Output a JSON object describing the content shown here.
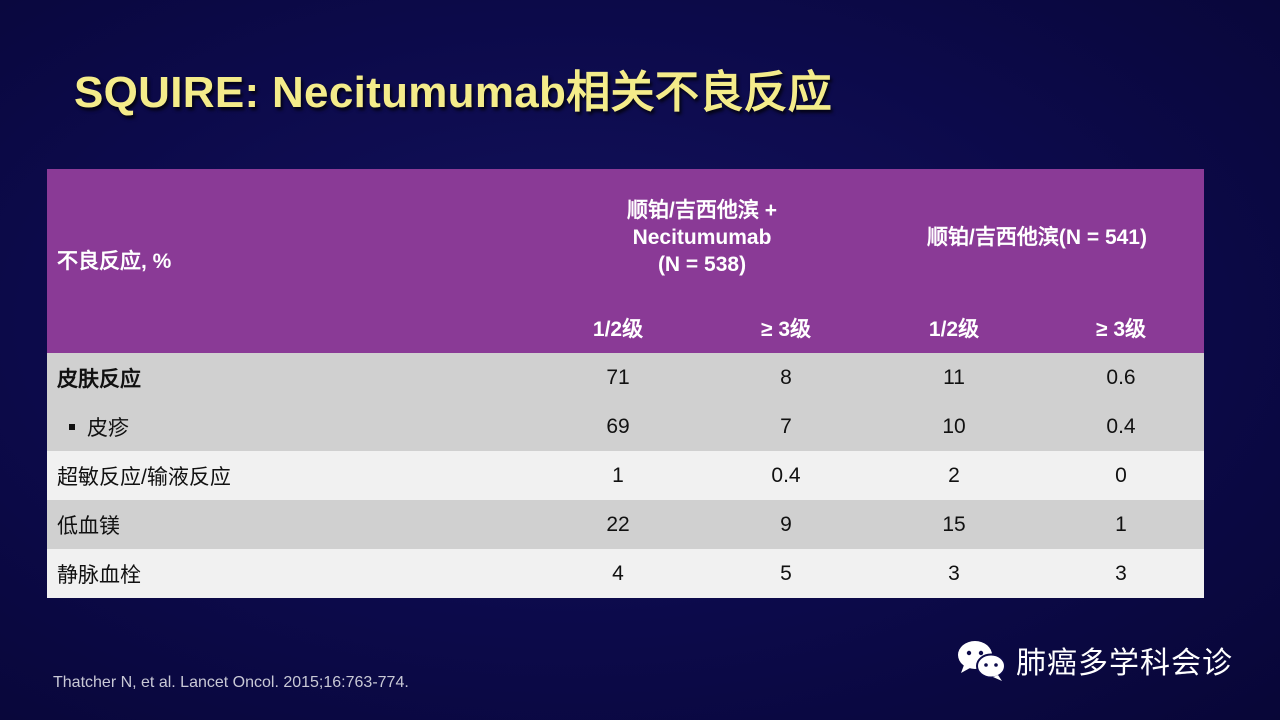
{
  "title": "SQUIRE: Necitumumab相关不良反应",
  "table": {
    "header": {
      "label_col": "不良反应, %",
      "groups": [
        {
          "line1": "顺铂/吉西他滨 +",
          "line2": "Necitumumab",
          "line3": "(N = 538)"
        },
        {
          "line1": "顺铂/吉西他滨(N = 541)"
        }
      ],
      "subheaders": [
        "1/2级",
        "≥ 3级",
        "1/2级",
        "≥ 3级"
      ]
    },
    "rows": [
      {
        "label": "皮肤反应",
        "values": [
          "71",
          "8",
          "11",
          "0.6"
        ]
      },
      {
        "label": "皮疹",
        "values": [
          "69",
          "7",
          "10",
          "0.4"
        ]
      },
      {
        "label": "超敏反应/输液反应",
        "values": [
          "1",
          "0.4",
          "2",
          "0"
        ]
      },
      {
        "label": "低血镁",
        "values": [
          "22",
          "9",
          "15",
          "1"
        ]
      },
      {
        "label": "静脉血栓",
        "values": [
          "4",
          "5",
          "3",
          "3"
        ]
      }
    ]
  },
  "citation": "Thatcher N, et al. Lancet Oncol. 2015;16:763-774.",
  "brand": {
    "text": "肺癌多学科会诊",
    "icon": "wechat-icon"
  },
  "colors": {
    "background": "#0c0a4a",
    "title": "#f4ec8a",
    "header": "#8a3a96",
    "row_gray": "#d0d0d0",
    "row_light": "#f1f1f1"
  }
}
